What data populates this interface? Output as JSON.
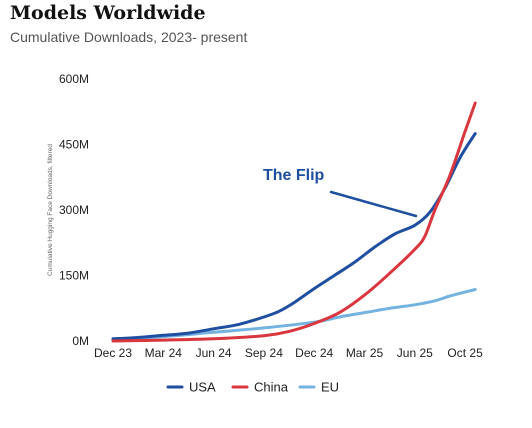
{
  "header": {
    "title": "Models Worldwide",
    "subtitle": "Cumulative Downloads, 2023- present"
  },
  "chart_data": {
    "type": "line",
    "ylabel": "Cumulative Hugging Face Downloads, filtered",
    "xlabel": "",
    "categories": [
      "Dec 23",
      "Mar 24",
      "Jun 24",
      "Sep 24",
      "Dec 24",
      "Mar 25",
      "Jun 25",
      "Oct 25"
    ],
    "y_ticks": [
      "0M",
      "150M",
      "300M",
      "450M",
      "600M"
    ],
    "ylim": [
      0,
      600
    ],
    "y_unit": "M",
    "grid": false,
    "legend_position": "bottom",
    "annotation": "The Flip",
    "series": [
      {
        "name": "USA",
        "color": "#1f4fa0",
        "points": [
          [
            0,
            5
          ],
          [
            0.5,
            8
          ],
          [
            1,
            13
          ],
          [
            1.5,
            18
          ],
          [
            2,
            28
          ],
          [
            2.5,
            38
          ],
          [
            3,
            55
          ],
          [
            3.3,
            68
          ],
          [
            3.6,
            88
          ],
          [
            4,
            120
          ],
          [
            4.4,
            150
          ],
          [
            4.8,
            180
          ],
          [
            5.2,
            215
          ],
          [
            5.6,
            245
          ],
          [
            6,
            265
          ],
          [
            6.3,
            295
          ],
          [
            6.6,
            350
          ],
          [
            6.9,
            420
          ],
          [
            7.2,
            475
          ]
        ]
      },
      {
        "name": "China",
        "color": "#d9363e",
        "points": [
          [
            0,
            0
          ],
          [
            1,
            2
          ],
          [
            2,
            5
          ],
          [
            3,
            12
          ],
          [
            3.5,
            22
          ],
          [
            4,
            40
          ],
          [
            4.5,
            65
          ],
          [
            5,
            105
          ],
          [
            5.5,
            155
          ],
          [
            6,
            210
          ],
          [
            6.2,
            240
          ],
          [
            6.4,
            300
          ],
          [
            6.7,
            380
          ],
          [
            7,
            480
          ],
          [
            7.2,
            545
          ]
        ]
      },
      {
        "name": "EU",
        "color": "#74b3df",
        "points": [
          [
            0,
            3
          ],
          [
            1,
            10
          ],
          [
            2,
            20
          ],
          [
            3,
            30
          ],
          [
            4,
            43
          ],
          [
            4.5,
            55
          ],
          [
            5,
            65
          ],
          [
            5.5,
            75
          ],
          [
            6,
            83
          ],
          [
            6.4,
            92
          ],
          [
            6.7,
            103
          ],
          [
            7.2,
            118
          ]
        ]
      }
    ]
  }
}
